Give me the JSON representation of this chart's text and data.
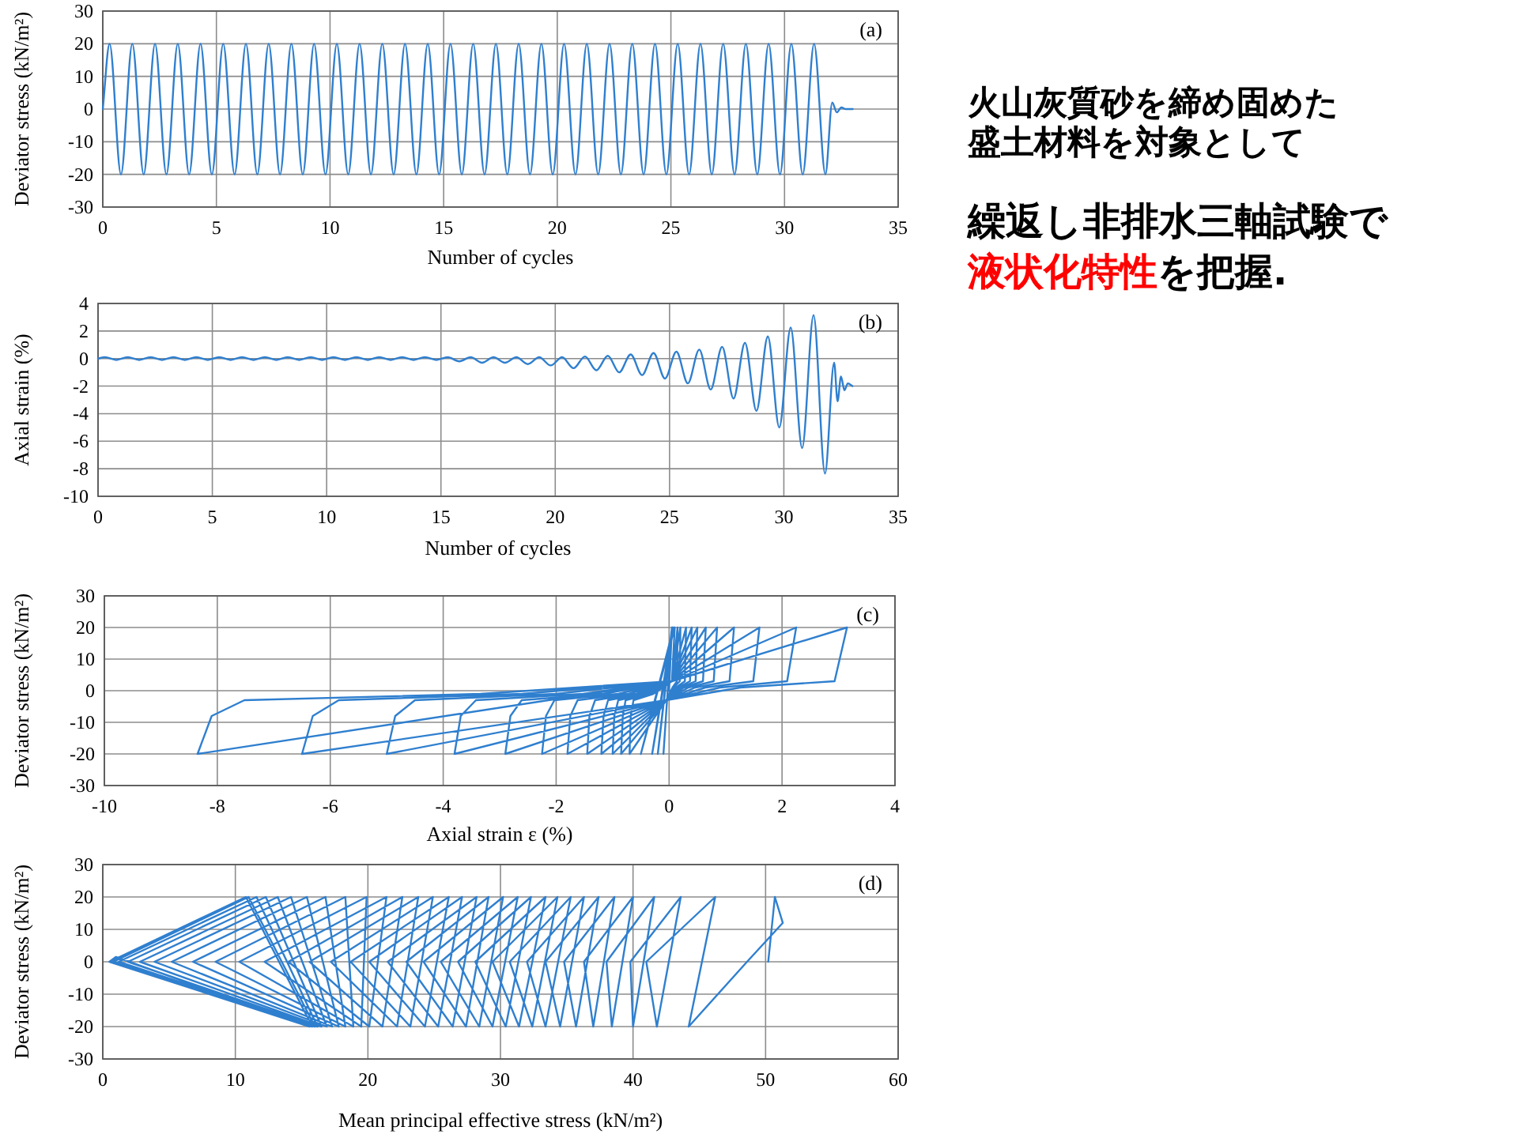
{
  "chart_data": [
    {
      "type": "line",
      "xlabel": "Number of cycles",
      "ylabel": "Deviator stress (kN/m²)",
      "annotations": [
        "(a)"
      ],
      "grid": true,
      "color": "#2f7fcf",
      "xlim": [
        0,
        35
      ],
      "xticks": [
        0,
        5,
        10,
        15,
        20,
        25,
        30,
        35
      ],
      "ylim": [
        -30,
        30
      ],
      "yticks": [
        -30,
        -20,
        -10,
        0,
        10,
        20,
        30
      ],
      "x": [
        0,
        0.3,
        0.8,
        1.3,
        1.8,
        2.3,
        2.8,
        3.3,
        3.8,
        4.3,
        4.8,
        5.3,
        5.8,
        6.3,
        6.8,
        7.3,
        7.8,
        8.3,
        8.8,
        9.3,
        9.8,
        10.3,
        10.8,
        11.3,
        11.8,
        12.3,
        12.8,
        13.3,
        13.8,
        14.3,
        14.8,
        15.3,
        15.8,
        16.3,
        16.8,
        17.3,
        17.8,
        18.3,
        18.8,
        19.3,
        19.8,
        20.3,
        20.8,
        21.3,
        21.8,
        22.3,
        22.8,
        23.3,
        23.8,
        24.3,
        24.8,
        25.3,
        25.8,
        26.3,
        26.8,
        27.3,
        27.8,
        28.3,
        28.8,
        29.3,
        29.8,
        30.3,
        30.8,
        31.3,
        31.8,
        32.1,
        32.3,
        32.5,
        32.7,
        33
      ],
      "values": [
        0,
        20,
        -20,
        20,
        -20,
        20,
        -20,
        20,
        -20,
        20,
        -20,
        20,
        -20,
        20,
        -20,
        20,
        -20,
        20,
        -20,
        20,
        -20,
        20,
        -20,
        20,
        -20,
        20,
        -20,
        20,
        -20,
        20,
        -20,
        20,
        -20,
        20,
        -20,
        20,
        -20,
        20,
        -20,
        20,
        -20,
        20,
        -20,
        20,
        -20,
        20,
        -20,
        20,
        -20,
        20,
        -20,
        20,
        -20,
        20,
        -20,
        20,
        -20,
        20,
        -20,
        20,
        -20,
        20,
        -20,
        20,
        -20,
        2,
        -1,
        0.5,
        0,
        0
      ]
    },
    {
      "type": "line",
      "xlabel": "Number of cycles",
      "ylabel": "Axial strain (%)",
      "annotations": [
        "(b)"
      ],
      "grid": true,
      "color": "#2f7fcf",
      "xlim": [
        0,
        35
      ],
      "xticks": [
        0,
        5,
        10,
        15,
        20,
        25,
        30,
        35
      ],
      "ylim": [
        -10,
        4
      ],
      "yticks": [
        -10,
        -8,
        -6,
        -4,
        -2,
        0,
        2,
        4
      ],
      "x": [
        0,
        0.3,
        0.8,
        1.3,
        1.8,
        2.3,
        2.8,
        3.3,
        3.8,
        4.3,
        4.8,
        5.3,
        5.8,
        6.3,
        6.8,
        7.3,
        7.8,
        8.3,
        8.8,
        9.3,
        9.8,
        10.3,
        10.8,
        11.3,
        11.8,
        12.3,
        12.8,
        13.3,
        13.8,
        14.3,
        14.8,
        15.3,
        15.8,
        16.3,
        16.8,
        17.3,
        17.8,
        18.3,
        18.8,
        19.3,
        19.8,
        20.3,
        20.8,
        21.3,
        21.8,
        22.3,
        22.8,
        23.3,
        23.8,
        24.3,
        24.8,
        25.3,
        25.8,
        26.3,
        26.8,
        27.3,
        27.8,
        28.3,
        28.8,
        29.3,
        29.8,
        30.3,
        30.8,
        31.3,
        31.8,
        32.2,
        32.35,
        32.5,
        32.65,
        32.8,
        33
      ],
      "values": [
        0,
        0.1,
        -0.1,
        0.1,
        -0.1,
        0.1,
        -0.1,
        0.1,
        -0.1,
        0.1,
        -0.1,
        0.1,
        -0.1,
        0.1,
        -0.1,
        0.1,
        -0.1,
        0.1,
        -0.1,
        0.1,
        -0.1,
        0.1,
        -0.1,
        0.1,
        -0.1,
        0.1,
        -0.1,
        0.1,
        -0.1,
        0.1,
        -0.1,
        0.1,
        -0.2,
        0.1,
        -0.3,
        0.1,
        -0.3,
        0.1,
        -0.4,
        0.1,
        -0.5,
        0.1,
        -0.7,
        0.15,
        -0.85,
        0.2,
        -1.0,
        0.3,
        -1.2,
        0.4,
        -1.45,
        0.5,
        -1.8,
        0.65,
        -2.25,
        0.85,
        -2.9,
        1.15,
        -3.8,
        1.6,
        -5.0,
        2.25,
        -6.5,
        3.15,
        -8.35,
        -0.3,
        -3.1,
        -1.3,
        -2.3,
        -1.8,
        -2.0
      ]
    },
    {
      "type": "line",
      "xlabel": "Axial strain ε (%)",
      "ylabel": "Deviator stress (kN/m²)",
      "annotations": [
        "(c)"
      ],
      "grid": true,
      "color": "#2f7fcf",
      "xlim": [
        -10,
        4
      ],
      "xticks": [
        -10,
        -8,
        -6,
        -4,
        -2,
        0,
        2,
        4
      ],
      "ylim": [
        -30,
        30
      ],
      "yticks": [
        -30,
        -20,
        -10,
        0,
        10,
        20,
        30
      ],
      "x": [
        0,
        0.05,
        -0.1,
        0.05,
        -0.2,
        0.06,
        -0.3,
        0.08,
        -0.5,
        0.1,
        0.05,
        -0.28,
        -0.63,
        -0.68,
        -0.7,
        -0.05,
        0.06,
        0.14,
        0.15,
        0.05,
        -0.34,
        -0.77,
        -0.82,
        -0.85,
        -0.05,
        0.08,
        0.19,
        0.2,
        0.05,
        -0.4,
        -0.9,
        -0.97,
        -1.0,
        -0.05,
        0.12,
        0.28,
        0.3,
        0.05,
        -0.48,
        -1.08,
        -1.16,
        -1.2,
        -0.05,
        0.16,
        0.37,
        0.4,
        0.05,
        -0.58,
        -1.31,
        -1.41,
        -1.45,
        -0.05,
        0.2,
        0.47,
        0.5,
        0.05,
        -0.72,
        -1.62,
        -1.75,
        -1.8,
        -0.05,
        0.26,
        0.6,
        0.65,
        0.05,
        -0.9,
        -2.03,
        -2.18,
        -2.25,
        -0.05,
        0.34,
        0.79,
        0.85,
        0.05,
        -1.16,
        -2.61,
        -2.81,
        -2.9,
        -0.05,
        0.46,
        1.07,
        1.15,
        0.05,
        -1.52,
        -3.42,
        -3.69,
        -3.8,
        -0.05,
        0.64,
        1.49,
        1.6,
        0.05,
        -2.0,
        -4.5,
        -4.85,
        -5.0,
        -0.05,
        0.9,
        2.09,
        2.25,
        0.05,
        -2.6,
        -5.85,
        -6.31,
        -6.5,
        -0.05,
        1.26,
        2.93,
        3.15,
        0.05,
        -3.34,
        -7.52,
        -8.1,
        -8.35,
        -0.3,
        -2
      ],
      "values": [
        0,
        20,
        -20,
        20,
        -20,
        20,
        -20,
        20,
        -20,
        20,
        3,
        -1,
        -3,
        -8,
        -20,
        -3,
        1,
        3,
        20,
        3,
        -1,
        -3,
        -8,
        -20,
        -3,
        1,
        3,
        20,
        3,
        -1,
        -3,
        -8,
        -20,
        -3,
        1,
        3,
        20,
        3,
        -1,
        -3,
        -8,
        -20,
        -3,
        1,
        3,
        20,
        3,
        -1,
        -3,
        -8,
        -20,
        -3,
        1,
        3,
        20,
        3,
        -1,
        -3,
        -8,
        -20,
        -3,
        1,
        3,
        20,
        3,
        -1,
        -3,
        -8,
        -20,
        -3,
        1,
        3,
        20,
        3,
        -1,
        -3,
        -8,
        -20,
        -3,
        1,
        3,
        20,
        3,
        -1,
        -3,
        -8,
        -20,
        -3,
        1,
        3,
        20,
        3,
        -1,
        -3,
        -8,
        -20,
        -3,
        1,
        3,
        20,
        3,
        -1,
        -3,
        -8,
        -20,
        -3,
        1,
        3,
        20,
        3,
        -1,
        -3,
        -8,
        -20,
        2,
        0
      ]
    },
    {
      "type": "line",
      "xlabel": "Mean principal effective stress (kN/m²)",
      "ylabel": "Deviator stress (kN/m²)",
      "annotations": [
        "(d)"
      ],
      "grid": true,
      "color": "#2f7fcf",
      "xlim": [
        0,
        60
      ],
      "xticks": [
        0,
        10,
        20,
        30,
        40,
        50,
        60
      ],
      "ylim": [
        -30,
        30
      ],
      "yticks": [
        -30,
        -20,
        -10,
        0,
        10,
        20,
        30
      ],
      "x": [
        50.2,
        50.7,
        51.3,
        48.6,
        44.2,
        46.2,
        41.0,
        41.8,
        43.6,
        39.8,
        40.0,
        41.6,
        38.0,
        38.4,
        40.0,
        36.3,
        37.0,
        38.6,
        34.8,
        35.7,
        37.4,
        33.4,
        34.5,
        36.3,
        32.0,
        33.4,
        35.3,
        30.7,
        32.4,
        34.3,
        29.4,
        31.4,
        33.4,
        28.1,
        30.4,
        32.3,
        26.8,
        29.4,
        31.3,
        25.5,
        28.4,
        30.2,
        24.2,
        27.4,
        29.1,
        22.9,
        26.4,
        28.2,
        21.5,
        25.3,
        27.1,
        20.1,
        24.3,
        26.1,
        18.7,
        23.2,
        24.9,
        17.2,
        22.2,
        23.8,
        15.6,
        21.1,
        22.6,
        14.0,
        20.1,
        21.4,
        12.2,
        19.5,
        19.9,
        10.3,
        18.9,
        18.3,
        8.5,
        18.3,
        16.8,
        6.8,
        17.8,
        15.4,
        5.2,
        17.3,
        14.2,
        3.9,
        16.9,
        13.2,
        2.8,
        16.5,
        12.3,
        1.9,
        16.2,
        11.6,
        1.2,
        16.0,
        11.0,
        0.8,
        15.8,
        10.8,
        0.5,
        15.6,
        1,
        0.5
      ],
      "values": [
        0,
        20,
        12,
        0,
        -20,
        20,
        0,
        -20,
        20,
        0,
        -20,
        20,
        0,
        -20,
        20,
        0,
        -20,
        20,
        0,
        -20,
        20,
        0,
        -20,
        20,
        0,
        -20,
        20,
        0,
        -20,
        20,
        0,
        -20,
        20,
        0,
        -20,
        20,
        0,
        -20,
        20,
        0,
        -20,
        20,
        0,
        -20,
        20,
        0,
        -20,
        20,
        0,
        -20,
        20,
        0,
        -20,
        20,
        0,
        -20,
        20,
        0,
        -20,
        20,
        0,
        -20,
        20,
        0,
        -20,
        20,
        0,
        -20,
        20,
        0,
        -20,
        20,
        0,
        -20,
        20,
        0,
        -20,
        20,
        0,
        -20,
        20,
        0,
        -20,
        20,
        0,
        -20,
        20,
        0,
        -20,
        20,
        0,
        -20,
        20,
        0,
        -20,
        20,
        0,
        -20,
        1.5,
        0
      ]
    },
    {
      "type": "other",
      "annotations": [
        "火山灰質砂を締め固めた",
        "盛土材料を対象として",
        "繰返し非排水三軸試験で",
        "液状化特性",
        "を把握."
      ]
    }
  ]
}
